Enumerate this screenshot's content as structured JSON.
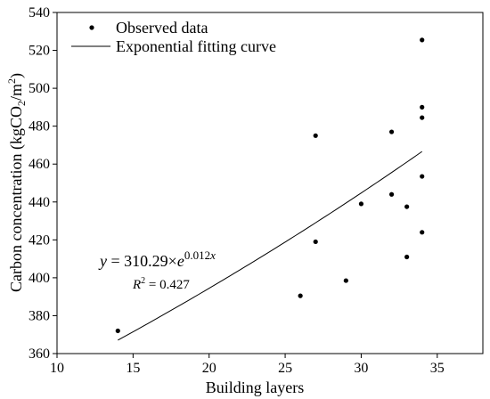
{
  "chart_data": {
    "type": "scatter",
    "xlabel": "Building layers",
    "ylabel_parts": {
      "pre": "Carbon concentration (kgCO",
      "sub": "2",
      "mid": "/m",
      "sup": "2",
      "post": ")"
    },
    "xlim": [
      10,
      38
    ],
    "ylim": [
      360,
      540
    ],
    "xticks": [
      10,
      15,
      20,
      25,
      30,
      35
    ],
    "yticks": [
      360,
      380,
      400,
      420,
      440,
      460,
      480,
      500,
      520,
      540
    ],
    "series": [
      {
        "name": "Observed data",
        "kind": "points",
        "x": [
          14,
          26,
          27,
          27,
          29,
          30,
          32,
          32,
          33,
          33,
          34,
          34,
          34,
          34,
          34
        ],
        "y": [
          372,
          390.5,
          419,
          475,
          398.5,
          439,
          477,
          444,
          437.5,
          411,
          453.5,
          424,
          484.5,
          490,
          525.5
        ]
      },
      {
        "name": "Exponential fitting curve",
        "kind": "fit",
        "a": 310.29,
        "b": 0.012,
        "x_range": [
          14,
          34
        ]
      }
    ],
    "annotation": {
      "equation_lhs": "y",
      "equation_eq": " = 310.29×",
      "equation_base": "e",
      "equation_exp_num": "0.012",
      "equation_exp_var": "x",
      "r2_label": "R",
      "r2_sup": "2",
      "r2_value": " = 0.427"
    },
    "legend_position": "top-left",
    "grid": false
  }
}
